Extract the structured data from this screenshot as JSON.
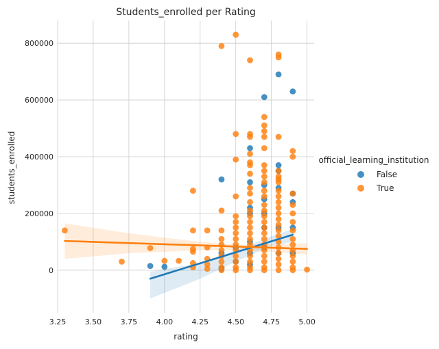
{
  "chart_data": {
    "type": "scatter",
    "title": "Students_enrolled per Rating",
    "xlabel": "rating",
    "ylabel": "students_enrolled",
    "xlim": [
      3.25,
      5.05
    ],
    "ylim": [
      -150000,
      880000
    ],
    "x_ticks": [
      3.25,
      3.5,
      3.75,
      4.0,
      4.25,
      4.5,
      4.75,
      5.0
    ],
    "x_tick_labels": [
      "3.25",
      "3.50",
      "3.75",
      "4.00",
      "4.25",
      "4.50",
      "4.75",
      "5.00"
    ],
    "y_ticks": [
      0,
      200000,
      400000,
      600000,
      800000
    ],
    "y_tick_labels": [
      "0",
      "200000",
      "400000",
      "600000",
      "800000"
    ],
    "grid": true,
    "legend": {
      "title": "official_learning_institution",
      "placement": "right",
      "entries": [
        "False",
        "True"
      ]
    },
    "series": [
      {
        "name": "False",
        "color": "#1f77b4",
        "points": [
          [
            3.9,
            15000
          ],
          [
            4.0,
            12000
          ],
          [
            4.4,
            320000
          ],
          [
            4.4,
            5000
          ],
          [
            4.4,
            60000
          ],
          [
            4.5,
            80000
          ],
          [
            4.5,
            30000
          ],
          [
            4.6,
            430000
          ],
          [
            4.6,
            310000
          ],
          [
            4.6,
            220000
          ],
          [
            4.6,
            200000
          ],
          [
            4.6,
            100000
          ],
          [
            4.6,
            60000
          ],
          [
            4.6,
            20000
          ],
          [
            4.7,
            610000
          ],
          [
            4.7,
            300000
          ],
          [
            4.7,
            250000
          ],
          [
            4.7,
            200000
          ],
          [
            4.7,
            150000
          ],
          [
            4.7,
            80000
          ],
          [
            4.8,
            690000
          ],
          [
            4.8,
            370000
          ],
          [
            4.8,
            350000
          ],
          [
            4.8,
            290000
          ],
          [
            4.8,
            150000
          ],
          [
            4.8,
            60000
          ],
          [
            4.9,
            630000
          ],
          [
            4.9,
            270000
          ],
          [
            4.9,
            240000
          ],
          [
            4.9,
            150000
          ],
          [
            4.9,
            60000
          ]
        ],
        "regression": {
          "x": [
            3.9,
            4.9
          ],
          "y": [
            -30000,
            125000
          ]
        },
        "ci_band": {
          "x": [
            3.9,
            4.25,
            4.5,
            4.75,
            4.9
          ],
          "upper": [
            -5000,
            25000,
            70000,
            120000,
            145000
          ],
          "lower": [
            -100000,
            -30000,
            30000,
            85000,
            100000
          ]
        }
      },
      {
        "name": "True",
        "color": "#ff7f0e",
        "points": [
          [
            3.3,
            140000
          ],
          [
            3.7,
            30000
          ],
          [
            3.9,
            78000
          ],
          [
            4.0,
            33000
          ],
          [
            4.1,
            33000
          ],
          [
            4.2,
            280000
          ],
          [
            4.2,
            140000
          ],
          [
            4.2,
            75000
          ],
          [
            4.2,
            65000
          ],
          [
            4.2,
            25000
          ],
          [
            4.2,
            10000
          ],
          [
            4.3,
            140000
          ],
          [
            4.3,
            80000
          ],
          [
            4.3,
            40000
          ],
          [
            4.3,
            20000
          ],
          [
            4.3,
            5000
          ],
          [
            4.4,
            790000
          ],
          [
            4.4,
            210000
          ],
          [
            4.4,
            140000
          ],
          [
            4.4,
            110000
          ],
          [
            4.4,
            90000
          ],
          [
            4.4,
            70000
          ],
          [
            4.4,
            50000
          ],
          [
            4.4,
            30000
          ],
          [
            4.4,
            10000
          ],
          [
            4.4,
            0
          ],
          [
            4.5,
            830000
          ],
          [
            4.5,
            480000
          ],
          [
            4.5,
            390000
          ],
          [
            4.5,
            260000
          ],
          [
            4.5,
            190000
          ],
          [
            4.5,
            170000
          ],
          [
            4.5,
            150000
          ],
          [
            4.5,
            130000
          ],
          [
            4.5,
            110000
          ],
          [
            4.5,
            90000
          ],
          [
            4.5,
            70000
          ],
          [
            4.5,
            50000
          ],
          [
            4.5,
            30000
          ],
          [
            4.5,
            10000
          ],
          [
            4.5,
            0
          ],
          [
            4.6,
            740000
          ],
          [
            4.6,
            480000
          ],
          [
            4.6,
            470000
          ],
          [
            4.6,
            410000
          ],
          [
            4.6,
            380000
          ],
          [
            4.6,
            370000
          ],
          [
            4.6,
            340000
          ],
          [
            4.6,
            290000
          ],
          [
            4.6,
            270000
          ],
          [
            4.6,
            240000
          ],
          [
            4.6,
            210000
          ],
          [
            4.6,
            190000
          ],
          [
            4.6,
            170000
          ],
          [
            4.6,
            150000
          ],
          [
            4.6,
            130000
          ],
          [
            4.6,
            110000
          ],
          [
            4.6,
            90000
          ],
          [
            4.6,
            70000
          ],
          [
            4.6,
            50000
          ],
          [
            4.6,
            30000
          ],
          [
            4.6,
            10000
          ],
          [
            4.6,
            0
          ],
          [
            4.7,
            540000
          ],
          [
            4.7,
            510000
          ],
          [
            4.7,
            490000
          ],
          [
            4.7,
            470000
          ],
          [
            4.7,
            430000
          ],
          [
            4.7,
            370000
          ],
          [
            4.7,
            350000
          ],
          [
            4.7,
            330000
          ],
          [
            4.7,
            310000
          ],
          [
            4.7,
            280000
          ],
          [
            4.7,
            260000
          ],
          [
            4.7,
            230000
          ],
          [
            4.7,
            210000
          ],
          [
            4.7,
            190000
          ],
          [
            4.7,
            170000
          ],
          [
            4.7,
            150000
          ],
          [
            4.7,
            130000
          ],
          [
            4.7,
            110000
          ],
          [
            4.7,
            90000
          ],
          [
            4.7,
            70000
          ],
          [
            4.7,
            50000
          ],
          [
            4.7,
            30000
          ],
          [
            4.7,
            10000
          ],
          [
            4.7,
            0
          ],
          [
            4.8,
            760000
          ],
          [
            4.8,
            750000
          ],
          [
            4.8,
            470000
          ],
          [
            4.8,
            350000
          ],
          [
            4.8,
            330000
          ],
          [
            4.8,
            320000
          ],
          [
            4.8,
            310000
          ],
          [
            4.8,
            280000
          ],
          [
            4.8,
            260000
          ],
          [
            4.8,
            240000
          ],
          [
            4.8,
            220000
          ],
          [
            4.8,
            200000
          ],
          [
            4.8,
            180000
          ],
          [
            4.8,
            160000
          ],
          [
            4.8,
            140000
          ],
          [
            4.8,
            120000
          ],
          [
            4.8,
            100000
          ],
          [
            4.8,
            80000
          ],
          [
            4.8,
            60000
          ],
          [
            4.8,
            40000
          ],
          [
            4.8,
            20000
          ],
          [
            4.8,
            0
          ],
          [
            4.9,
            420000
          ],
          [
            4.9,
            400000
          ],
          [
            4.9,
            270000
          ],
          [
            4.9,
            230000
          ],
          [
            4.9,
            200000
          ],
          [
            4.9,
            170000
          ],
          [
            4.9,
            140000
          ],
          [
            4.9,
            110000
          ],
          [
            4.9,
            90000
          ],
          [
            4.9,
            70000
          ],
          [
            4.9,
            50000
          ],
          [
            4.9,
            30000
          ],
          [
            4.9,
            10000
          ],
          [
            4.9,
            0
          ],
          [
            5.0,
            2000
          ]
        ],
        "regression": {
          "x": [
            3.3,
            5.0
          ],
          "y": [
            103000,
            75000
          ]
        },
        "ci_band": {
          "x": [
            3.3,
            3.75,
            4.25,
            4.5,
            4.75,
            5.0
          ],
          "upper": [
            165000,
            130000,
            100000,
            90000,
            90000,
            95000
          ],
          "lower": [
            40000,
            60000,
            70000,
            72000,
            65000,
            55000
          ]
        }
      }
    ]
  }
}
